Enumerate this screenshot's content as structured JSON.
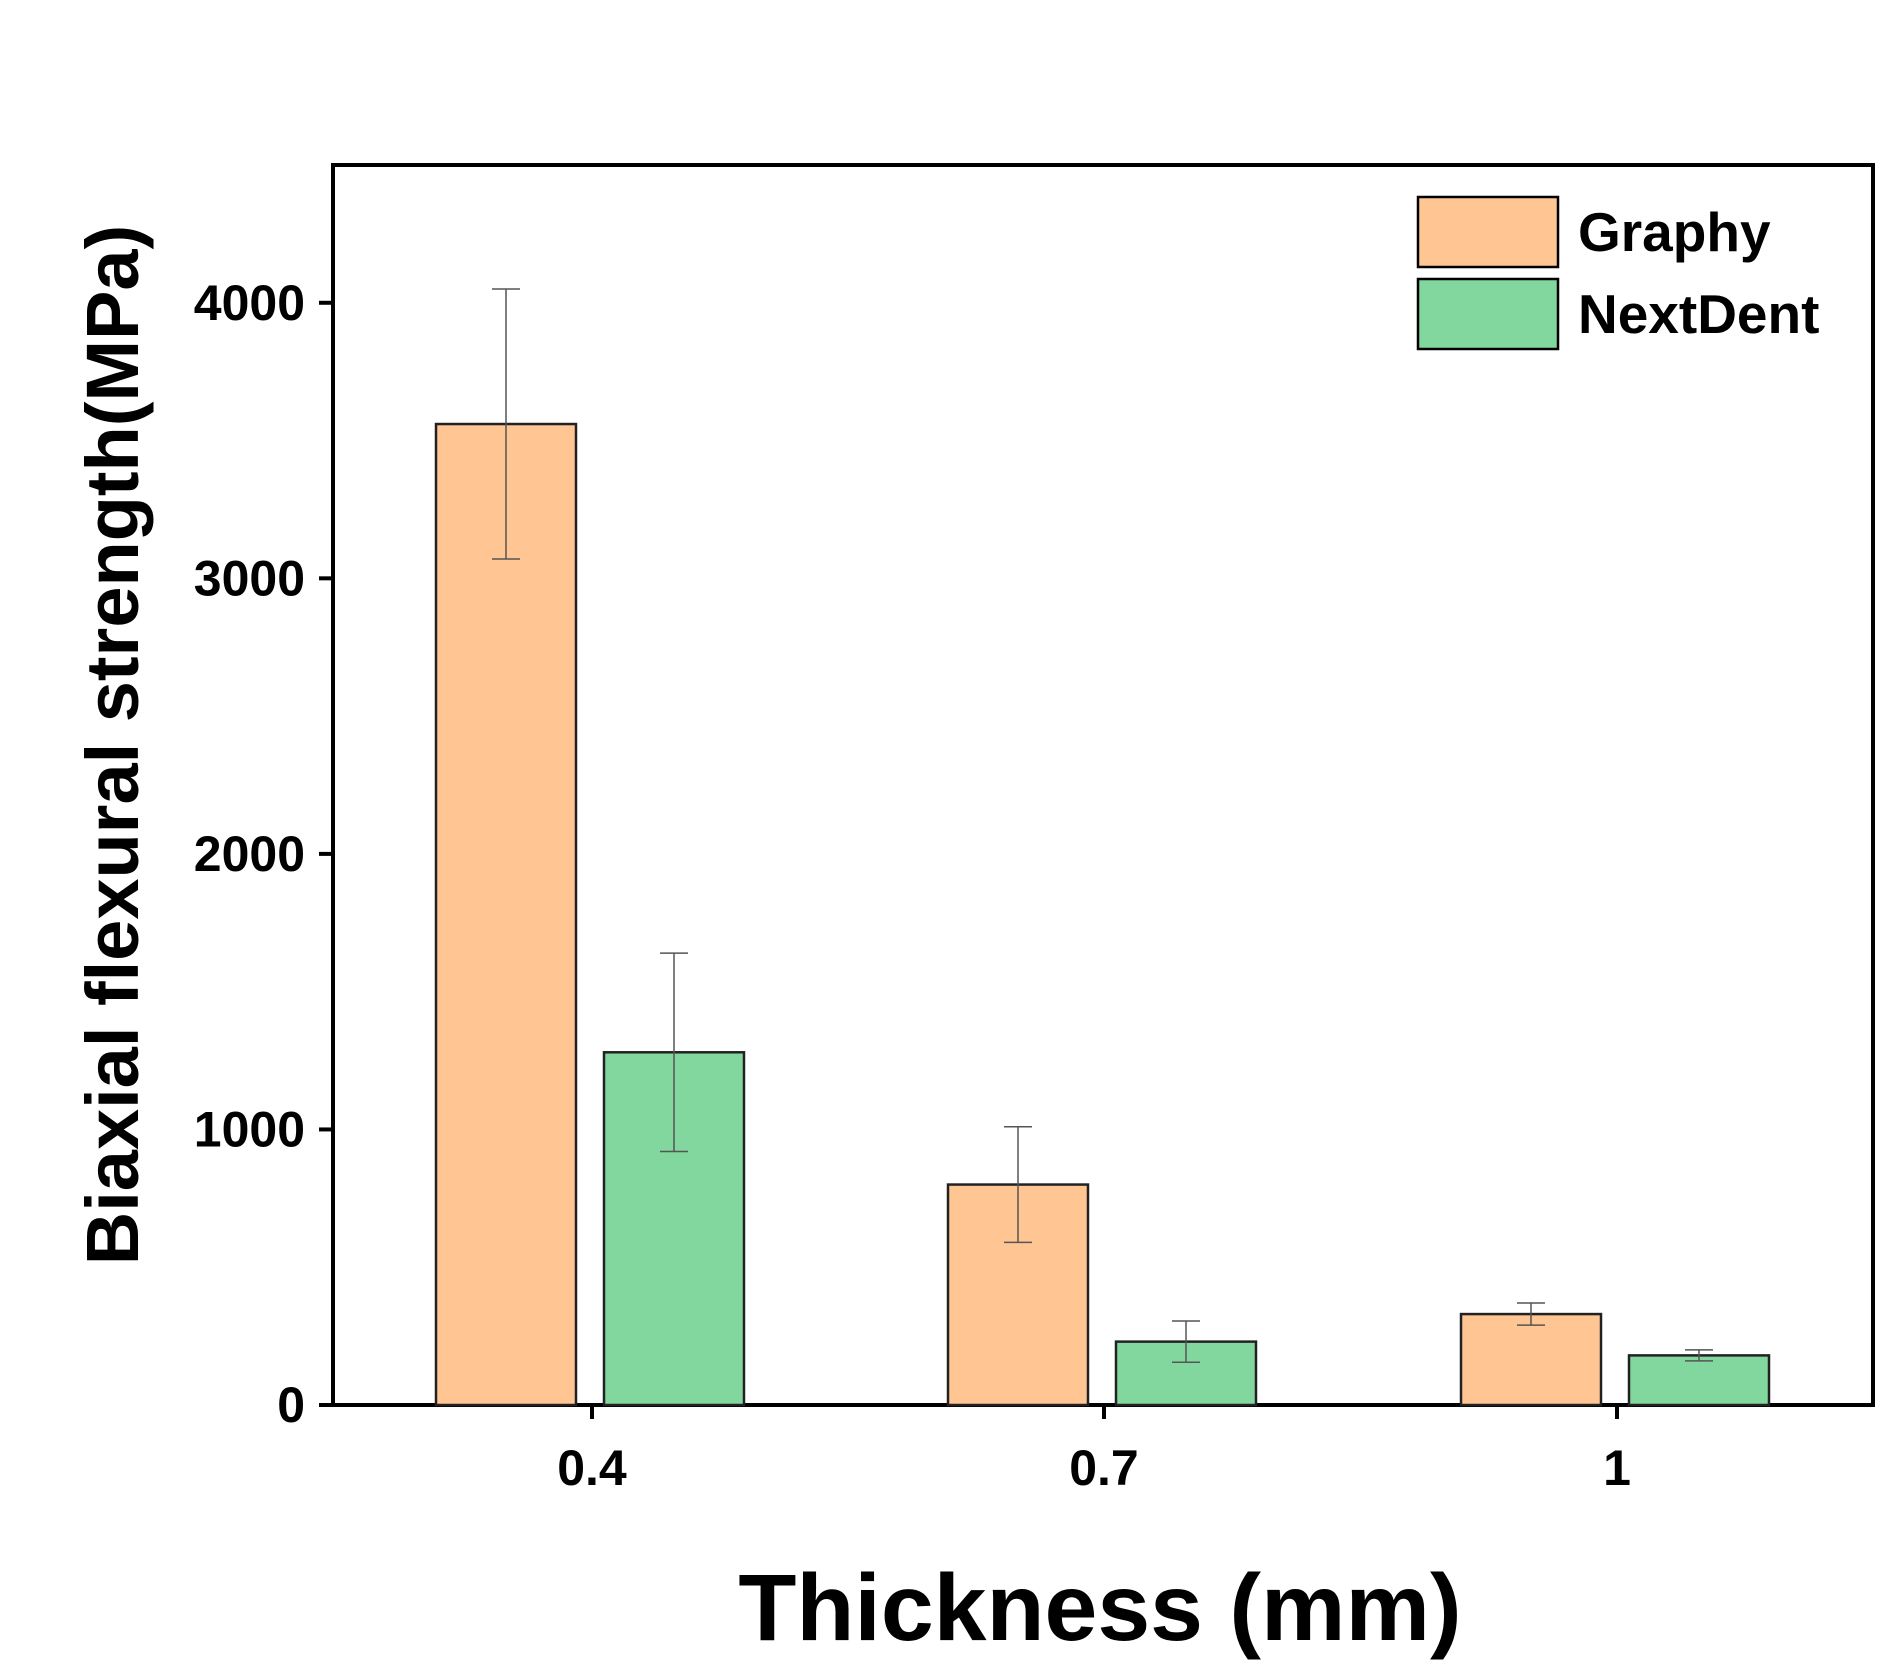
{
  "chart_data": {
    "type": "bar",
    "title": "",
    "xlabel": "Thickness (mm)",
    "ylabel": "Biaxial flexural strength(MPa)",
    "categories": [
      "0.4",
      "0.7",
      "1"
    ],
    "ylim": [
      0,
      4500
    ],
    "yticks": [
      0,
      1000,
      2000,
      3000,
      4000
    ],
    "grid": false,
    "legend_position": "top-right",
    "series": [
      {
        "name": "Graphy",
        "color": "#FFC593",
        "values": [
          3560,
          800,
          330
        ],
        "errors": [
          490,
          210,
          40
        ]
      },
      {
        "name": "NextDent",
        "color": "#81D79D",
        "values": [
          1280,
          230,
          180
        ],
        "errors": [
          360,
          75,
          20
        ]
      }
    ]
  }
}
